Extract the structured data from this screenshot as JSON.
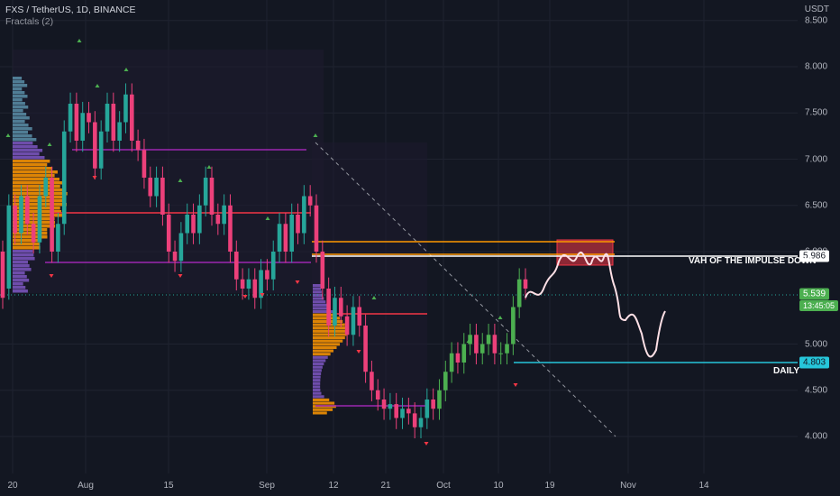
{
  "header": {
    "symbol_line": "FXS / TetherUS, 1D, BINANCE",
    "indicator": "Fractals (2)",
    "currency": "USDT"
  },
  "price_tags": {
    "vah": "5.986",
    "current": "5.539",
    "countdown": "13:45:05",
    "daily": "4.803"
  },
  "annotations": {
    "vah_label": "VAH OF THE IMPULSE DOWN",
    "daily_label": "DAILY"
  },
  "colors": {
    "up": "#26a69a",
    "up_bright": "#4caf50",
    "down": "#ec407a",
    "background": "#131722",
    "orange_level": "#ff9800",
    "purple_level": "#9c27b0",
    "red_level": "#f23645",
    "daily_level": "#26c6da",
    "box": "#f23645"
  },
  "chart_data": {
    "type": "candlestick",
    "title": "FXS / TetherUS, 1D, BINANCE",
    "indicator": "Fractals (2)",
    "y_axis": {
      "ylim": [
        3.7,
        8.6
      ],
      "ticks": [
        "8.500",
        "8.000",
        "7.500",
        "7.000",
        "6.500",
        "6.000",
        "5.000",
        "4.500",
        "4.000"
      ]
    },
    "x_axis": {
      "ticks": [
        "20",
        "Aug",
        "15",
        "Sep",
        "12",
        "21",
        "Oct",
        "10",
        "19",
        "Nov",
        "14"
      ]
    },
    "levels": [
      {
        "name": "VAH OF THE IMPULSE DOWN",
        "value": 5.986
      },
      {
        "name": "DAILY",
        "value": 4.803
      },
      {
        "name": "current price",
        "value": 5.539
      }
    ],
    "candles": [
      [
        6.0,
        5.5
      ],
      [
        5.6,
        6.5
      ],
      [
        6.5,
        6.2
      ],
      [
        6.2,
        6.6
      ],
      [
        6.6,
        6.3
      ],
      [
        6.3,
        6.1
      ],
      [
        6.1,
        6.6
      ],
      [
        6.6,
        6.8
      ],
      [
        6.8,
        6.0
      ],
      [
        6.0,
        6.3
      ],
      [
        6.3,
        7.3
      ],
      [
        7.3,
        7.6
      ],
      [
        7.6,
        7.2
      ],
      [
        7.2,
        7.5
      ],
      [
        7.5,
        7.4
      ],
      [
        7.4,
        6.9
      ],
      [
        6.9,
        7.3
      ],
      [
        7.3,
        7.6
      ],
      [
        7.6,
        7.2
      ],
      [
        7.2,
        7.4
      ],
      [
        7.4,
        7.7
      ],
      [
        7.7,
        7.2
      ],
      [
        7.2,
        7.1
      ],
      [
        7.1,
        6.8
      ],
      [
        6.8,
        6.6
      ],
      [
        6.6,
        6.8
      ],
      [
        6.8,
        6.4
      ],
      [
        6.4,
        6.0
      ],
      [
        6.0,
        5.9
      ],
      [
        5.9,
        6.2
      ],
      [
        6.2,
        6.4
      ],
      [
        6.4,
        6.2
      ],
      [
        6.2,
        6.5
      ],
      [
        6.5,
        6.8
      ],
      [
        6.8,
        6.4
      ],
      [
        6.4,
        6.3
      ],
      [
        6.3,
        6.5
      ],
      [
        6.5,
        6.0
      ],
      [
        6.0,
        5.7
      ],
      [
        5.7,
        5.6
      ],
      [
        5.6,
        5.7
      ],
      [
        5.7,
        5.5
      ],
      [
        5.5,
        5.8
      ],
      [
        5.8,
        5.7
      ],
      [
        5.7,
        6.0
      ],
      [
        6.0,
        6.3
      ],
      [
        6.3,
        6.0
      ],
      [
        6.0,
        6.4
      ],
      [
        6.4,
        6.2
      ],
      [
        6.2,
        6.6
      ],
      [
        6.6,
        6.5
      ],
      [
        6.5,
        6.0
      ],
      [
        6.0,
        5.6
      ],
      [
        5.6,
        5.2
      ],
      [
        5.2,
        5.5
      ],
      [
        5.5,
        5.3
      ],
      [
        5.3,
        5.1
      ],
      [
        5.1,
        5.4
      ],
      [
        5.4,
        5.2
      ],
      [
        5.2,
        4.7
      ],
      [
        4.7,
        4.5
      ],
      [
        4.5,
        4.4
      ],
      [
        4.4,
        4.3
      ],
      [
        4.3,
        4.35
      ],
      [
        4.35,
        4.2
      ],
      [
        4.2,
        4.3
      ],
      [
        4.3,
        4.25
      ],
      [
        4.25,
        4.1
      ],
      [
        4.1,
        4.2
      ],
      [
        4.2,
        4.4
      ],
      [
        4.4,
        4.3
      ],
      [
        4.3,
        4.5
      ],
      [
        4.5,
        4.7
      ],
      [
        4.7,
        4.9
      ],
      [
        4.9,
        4.8
      ],
      [
        4.8,
        5.0
      ],
      [
        5.0,
        5.1
      ],
      [
        5.1,
        4.9
      ],
      [
        4.9,
        5.0
      ],
      [
        5.0,
        5.1
      ],
      [
        5.1,
        4.9
      ],
      [
        4.9,
        4.9
      ],
      [
        4.9,
        5.0
      ],
      [
        5.0,
        5.4
      ],
      [
        5.4,
        5.7
      ],
      [
        5.7,
        5.6
      ]
    ]
  }
}
